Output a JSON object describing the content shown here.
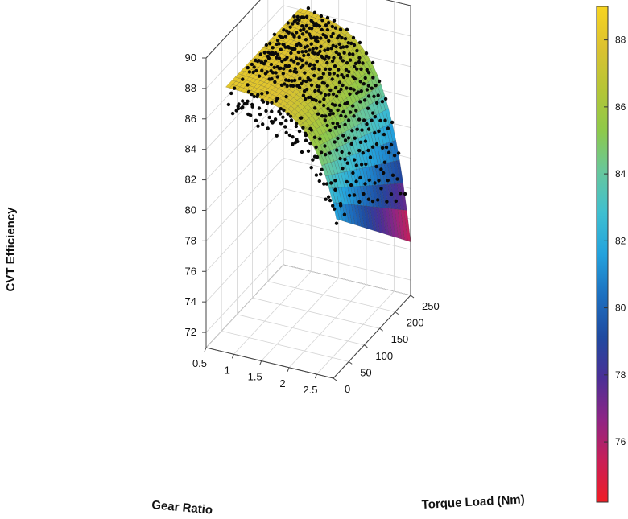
{
  "chart_data": {
    "type": "surface3d",
    "title": "",
    "axes": {
      "x": {
        "label": "Gear Ratio",
        "range": [
          0.5,
          2.8
        ],
        "ticks": [
          "0.5",
          "1",
          "1.5",
          "2",
          "2.5"
        ]
      },
      "y": {
        "label": "Torque Load (Nm)",
        "range": [
          0,
          250
        ],
        "ticks": [
          "0",
          "50",
          "100",
          "150",
          "200",
          "250"
        ]
      },
      "z": {
        "label": "CVT Efficiency",
        "range": [
          71,
          90
        ],
        "ticks": [
          "72",
          "74",
          "76",
          "78",
          "80",
          "82",
          "84",
          "86",
          "88",
          "90"
        ]
      }
    },
    "grid": true,
    "colormap": "jet",
    "colorbar": {
      "range": [
        74.2,
        89
      ],
      "ticks": [
        "76",
        "78",
        "80",
        "82",
        "84",
        "86",
        "88"
      ],
      "placement": "right",
      "colors": [
        "#ef1d25",
        "#c91f57",
        "#8e2585",
        "#4a2f96",
        "#1f4aa0",
        "#1d70c0",
        "#23a2dd",
        "#3fbfd0",
        "#67c79c",
        "#8ec94a",
        "#b6c536",
        "#dcc230",
        "#f7d420"
      ]
    },
    "surface_model": "efficiency = 88.2 - (88.2 - (74.5 + 7*(1 - t/250))) * exp(-(2.8 - gear_ratio)/0.42)",
    "gear_ratio_samples": [
      0.8,
      1.0,
      1.2,
      1.4,
      1.6,
      1.8,
      2.0,
      2.2,
      2.4,
      2.6,
      2.8
    ],
    "torque_samples": [
      10,
      50,
      100,
      150,
      200,
      250
    ],
    "measured_points": "dense black marker rows along torque lines, scattered about the fitted surface"
  }
}
